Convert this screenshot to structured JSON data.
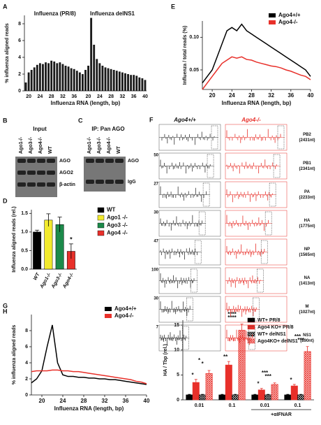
{
  "chart_data": [
    {
      "panel": "A",
      "type": "bar",
      "annotations": [
        "Influenza (PR/8)",
        "Influenza delNS1"
      ],
      "ylabel": "% influenza aligned reads",
      "xlabel": "Influenza RNA (length, bp)",
      "color": "#1a1a1a",
      "categories": [
        null,
        "20",
        null,
        null,
        null,
        "24",
        null,
        null,
        null,
        "28",
        null,
        null,
        null,
        "32",
        null,
        null,
        null,
        "36",
        null,
        null,
        null,
        null,
        "20",
        null,
        null,
        null,
        "24",
        null,
        null,
        null,
        "28",
        null,
        null,
        null,
        "32",
        null,
        null,
        null,
        "36",
        null,
        null,
        null,
        "40"
      ],
      "values": [
        1.0,
        2.2,
        2.5,
        2.8,
        3.1,
        3.3,
        3.2,
        3.4,
        3.3,
        3.6,
        3.5,
        3.3,
        3.4,
        3.2,
        3.0,
        2.9,
        2.7,
        2.6,
        2.4,
        2.2,
        2.0,
        2.5,
        3.0,
        8.7,
        5.5,
        3.8,
        3.3,
        3.0,
        2.8,
        2.7,
        2.6,
        2.5,
        2.4,
        2.3,
        2.2,
        2.1,
        2.0,
        1.9,
        1.9,
        1.8,
        1.6,
        1.5,
        1.3
      ],
      "ylim": [
        0,
        9
      ],
      "yticks": [
        0,
        2,
        4,
        6,
        8
      ]
    },
    {
      "panel": "E",
      "type": "line",
      "ylabel": "Influenza / total reads (%)",
      "xlabel": "Influenza RNA (length, bp)",
      "legend": "upper right",
      "x": [
        18,
        19,
        20,
        21,
        22,
        23,
        24,
        25,
        26,
        27,
        28,
        29,
        30,
        31,
        32,
        33,
        34,
        35,
        36,
        37,
        38,
        39,
        40
      ],
      "series": [
        {
          "name": "Ago4+/+",
          "color": "#000000",
          "values": [
            0.03,
            0.04,
            0.05,
            0.07,
            0.09,
            0.11,
            0.115,
            0.11,
            0.12,
            0.11,
            0.105,
            0.1,
            0.095,
            0.09,
            0.085,
            0.08,
            0.075,
            0.07,
            0.065,
            0.06,
            0.055,
            0.05,
            0.04
          ]
        },
        {
          "name": "Ago4-/-",
          "color": "#e8302a",
          "values": [
            0.02,
            0.03,
            0.04,
            0.05,
            0.06,
            0.065,
            0.07,
            0.068,
            0.07,
            0.066,
            0.065,
            0.062,
            0.06,
            0.058,
            0.056,
            0.055,
            0.053,
            0.05,
            0.048,
            0.045,
            0.042,
            0.04,
            0.035
          ]
        }
      ],
      "xlim": [
        18,
        40
      ],
      "xticks": [
        20,
        24,
        28,
        32,
        36,
        40
      ],
      "ylim": [
        0.02,
        0.125
      ],
      "yticks": [
        0.05,
        {
          "value": 0.1,
          "label": "0.10"
        }
      ]
    },
    {
      "panel": "D",
      "type": "errbar",
      "ylabel": "Influenza aligned reads (rel.)",
      "categories": [
        "WT",
        "Ago1-/-",
        "Ago3-/-",
        "Ago4-/-"
      ],
      "legend_labels": [
        "WT",
        "Ago1 -/-",
        "Ago3 -/-",
        "Ago4 -/-"
      ],
      "values": [
        1.0,
        1.32,
        1.2,
        0.48
      ],
      "errors": [
        0.05,
        0.17,
        0.2,
        0.2
      ],
      "colors": [
        "#000000",
        "#f2ea2e",
        "#1c8a4a",
        "#e8302a"
      ],
      "annotations": [
        "*"
      ],
      "ylim": [
        0,
        1.6
      ],
      "yticks": [
        {
          "value": 0,
          "label": "0.0"
        },
        {
          "value": 0.5,
          "label": "0.5"
        },
        {
          "value": 1,
          "label": "1.0"
        },
        {
          "value": 1.5,
          "label": "1.5"
        }
      ]
    },
    {
      "panel": "G",
      "type": "line",
      "ylabel": "% influenza aligned reads",
      "xlabel": "Influenza RNA (length, bp)",
      "legend": "upper right",
      "x": [
        18,
        19,
        20,
        21,
        22,
        23,
        24,
        25,
        26,
        27,
        28,
        29,
        30,
        31,
        32,
        33,
        34,
        35,
        36,
        37,
        38,
        39,
        40
      ],
      "series": [
        {
          "name": "Ago4+/+",
          "color": "#000000",
          "values": [
            1.5,
            2.0,
            3.0,
            6.0,
            8.7,
            4.0,
            2.5,
            2.3,
            2.3,
            2.2,
            2.2,
            2.1,
            2.1,
            2.0,
            2.0,
            1.9,
            1.9,
            1.8,
            1.7,
            1.6,
            1.5,
            1.4,
            1.3
          ]
        },
        {
          "name": "Ago4-/-",
          "color": "#e8302a",
          "values": [
            2.9,
            3.0,
            3.0,
            3.0,
            3.1,
            3.1,
            3.0,
            3.0,
            2.9,
            2.9,
            2.8,
            2.7,
            2.6,
            2.5,
            2.4,
            2.3,
            2.2,
            2.1,
            2.0,
            1.9,
            1.7,
            1.6,
            1.4
          ]
        }
      ],
      "xlim": [
        18,
        40
      ],
      "xticks": [
        20,
        24,
        28,
        32,
        36,
        40
      ],
      "ylim": [
        0,
        10
      ],
      "yticks": [
        0,
        2,
        4,
        6,
        8
      ]
    },
    {
      "panel": "H",
      "type": "grouped_bar",
      "ylabel": "HA / Tbp (rel.)",
      "categories": [
        "0.01",
        "0.1",
        "0.01",
        "0.1"
      ],
      "group_label": "+αIFNAR",
      "series": [
        {
          "name": "WT+ PR/8",
          "color": "#000000",
          "hatch": false,
          "values": [
            1,
            1,
            1,
            1
          ],
          "errors": [
            0.1,
            0.1,
            0.1,
            0.1
          ]
        },
        {
          "name": "Ago4 KO+ PR/8",
          "color": "#e8302a",
          "hatch": false,
          "values": [
            3.5,
            7,
            2,
            2.8
          ],
          "errors": [
            0.6,
            0.7,
            0.3,
            0.3
          ]
        },
        {
          "name": "WT+ delNS1",
          "color": "#000000",
          "hatch": true,
          "values": [
            1,
            1,
            1,
            1
          ],
          "errors": [
            0.1,
            0.1,
            0.1,
            0.1
          ]
        },
        {
          "name": "Ago4KO+ delNS1",
          "color": "#e8302a",
          "hatch": true,
          "values": [
            5.3,
            14,
            3.1,
            9.7
          ],
          "errors": [
            0.6,
            1.2,
            0.3,
            1.0
          ]
        }
      ],
      "annotations": [
        "*",
        "*",
        "*",
        "**",
        "****",
        "****",
        "*",
        "***",
        "***",
        "*",
        "***",
        "***"
      ],
      "ylim": [
        0,
        16
      ],
      "yticks": [
        0,
        5,
        10,
        15
      ]
    }
  ],
  "blots": [
    {
      "panel": "B",
      "title": "Input",
      "lanes": [
        "Ago1-/-",
        "Ago3-/-",
        "Ago4-/-",
        "WT"
      ],
      "bands": [
        "AGO",
        "AGO2",
        "β-actin"
      ]
    },
    {
      "panel": "C",
      "title": "IP: Pan AGO",
      "lanes": [
        "Ago1-/-",
        "Ago3-/-",
        "Ago4-/-",
        "WT"
      ],
      "bands": [
        "AGO",
        "IgG"
      ]
    }
  ],
  "coverage": {
    "panel": "F",
    "columns": [
      "Ago4+/+",
      "Ago4-/-"
    ],
    "segments": [
      {
        "name": "PB2",
        "length": "(2431nt)"
      },
      {
        "name": "PB1",
        "length": "(2341nt)",
        "ymax": "50"
      },
      {
        "name": "PA",
        "length": "(2233nt)",
        "ymax": "27"
      },
      {
        "name": "HA",
        "length": "(1775nt)",
        "ymax": "30"
      },
      {
        "name": "NP",
        "length": "(1565nt)",
        "ymax": "47"
      },
      {
        "name": "NA",
        "length": "(1413nt)",
        "ymax": "100"
      },
      {
        "name": "M",
        "length": "(1027nt)",
        "ymax": "30"
      },
      {
        "name": "NS1",
        "length": "(890nt)",
        "ymax": "7"
      }
    ]
  }
}
